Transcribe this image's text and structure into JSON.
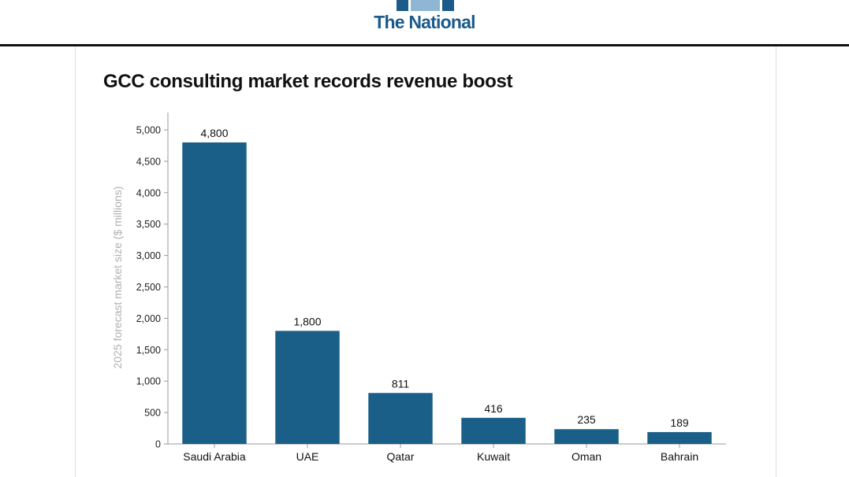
{
  "header": {
    "logo_text": "The National",
    "colors": {
      "brand_dark": "#1b5a8a",
      "brand_light": "#8fb6d3",
      "rule": "#111111"
    }
  },
  "chart_data": {
    "type": "bar",
    "title": "GCC consulting market records revenue boost",
    "categories": [
      "Saudi Arabia",
      "UAE",
      "Qatar",
      "Kuwait",
      "Oman",
      "Bahrain"
    ],
    "values": [
      4800,
      1800,
      811,
      416,
      235,
      189
    ],
    "value_labels": [
      "4,800",
      "1,800",
      "811",
      "416",
      "235",
      "189"
    ],
    "xlabel": "",
    "ylabel": "2025 forecast market size ($ millions)",
    "ylim": [
      0,
      5000
    ],
    "yticks": [
      0,
      500,
      1000,
      1500,
      2000,
      2500,
      3000,
      3500,
      4000,
      4500,
      5000
    ],
    "ytick_labels": [
      "0",
      "500",
      "1,000",
      "1,500",
      "2,000",
      "2,500",
      "3,000",
      "3,500",
      "4,000",
      "4,500",
      "5,000"
    ],
    "grid": false,
    "bar_color": "#1a5f87",
    "axis_color": "#999999"
  }
}
